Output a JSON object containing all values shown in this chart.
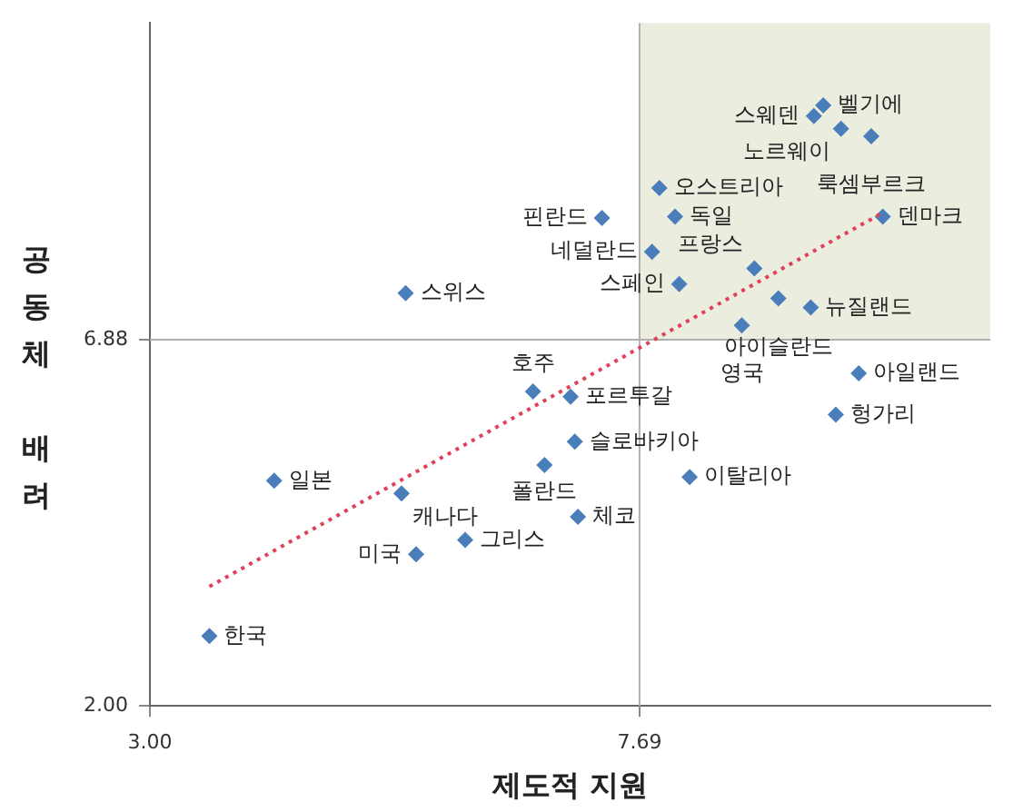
{
  "chart_data": {
    "type": "scatter",
    "xlabel": "제도적 지원",
    "ylabel": "공동체 배려",
    "xlim": [
      3,
      11.05
    ],
    "ylim": [
      2,
      11.1
    ],
    "xticks": [
      {
        "value": 3,
        "label": "3.00"
      },
      {
        "value": 7.69,
        "label": "7.69"
      }
    ],
    "yticks": [
      {
        "value": 2,
        "label": "2.00"
      },
      {
        "value": 6.88,
        "label": "6.88"
      }
    ],
    "grid": false,
    "legend": false,
    "marker": "diamond",
    "ref_lines": [
      {
        "axis": "x",
        "value": 7.69,
        "color": "#b0b0b0"
      },
      {
        "axis": "y",
        "value": 6.88,
        "color": "#b0b0b0"
      }
    ],
    "bands": [
      {
        "axis": "x",
        "from": 7.69,
        "to": 11.05,
        "color": "#ebeedf"
      }
    ],
    "series": [
      {
        "type": "scatter",
        "color": "#4a7ebb",
        "x": [
          7.33,
          5.45,
          9.45,
          9.36,
          9.62,
          9.91,
          7.88,
          8.03,
          7.81,
          8.79,
          8.07,
          9.02,
          9.33,
          8.67,
          10.02,
          9.79,
          6.67,
          7.03,
          7.07,
          6.78,
          4.19,
          5.41,
          7.1,
          6.02,
          5.55,
          3.57,
          8.17,
          9.57
        ],
        "values": [
          8.5,
          7.5,
          10.0,
          9.86,
          9.69,
          9.59,
          8.9,
          8.52,
          8.05,
          7.83,
          7.62,
          7.43,
          7.31,
          7.07,
          8.52,
          6.43,
          6.19,
          6.12,
          5.52,
          5.21,
          5.0,
          4.83,
          4.52,
          4.21,
          4.02,
          2.93,
          5.05,
          5.88
        ]
      },
      {
        "type": "line",
        "color": "#e0405a",
        "line_style": "dotted",
        "marker": "none",
        "x": [
          3.57,
          10.02
        ],
        "values": [
          3.59,
          8.57
        ]
      }
    ],
    "annotations": [
      {
        "text": "핀란드",
        "x": 7.33,
        "y": 8.5
      },
      {
        "text": "스위스",
        "x": 5.45,
        "y": 7.5
      },
      {
        "text": "벨기에",
        "x": 9.45,
        "y": 10.0
      },
      {
        "text": "스웨덴",
        "x": 9.36,
        "y": 9.86
      },
      {
        "text": "노르웨이",
        "x": 9.62,
        "y": 9.69
      },
      {
        "text": "룩셈부르크",
        "x": 9.91,
        "y": 9.59
      },
      {
        "text": "오스트리아",
        "x": 7.88,
        "y": 8.9
      },
      {
        "text": "독일",
        "x": 8.03,
        "y": 8.52
      },
      {
        "text": "네덜란드",
        "x": 7.81,
        "y": 8.05
      },
      {
        "text": "프랑스",
        "x": 8.79,
        "y": 7.83
      },
      {
        "text": "스페인",
        "x": 8.07,
        "y": 7.62
      },
      {
        "text": "아이슬란드",
        "x": 9.02,
        "y": 7.43
      },
      {
        "text": "뉴질랜드",
        "x": 9.33,
        "y": 7.31
      },
      {
        "text": "영국",
        "x": 8.67,
        "y": 7.07
      },
      {
        "text": "덴마크",
        "x": 10.02,
        "y": 8.52
      },
      {
        "text": "아일랜드",
        "x": 9.79,
        "y": 6.43
      },
      {
        "text": "호주",
        "x": 6.67,
        "y": 6.19
      },
      {
        "text": "포르투갈",
        "x": 7.03,
        "y": 6.12
      },
      {
        "text": "슬로바키아",
        "x": 7.07,
        "y": 5.52
      },
      {
        "text": "폴란드",
        "x": 6.78,
        "y": 5.21
      },
      {
        "text": "일본",
        "x": 4.19,
        "y": 5.0
      },
      {
        "text": "캐나다",
        "x": 5.41,
        "y": 4.83
      },
      {
        "text": "체코",
        "x": 7.1,
        "y": 4.52
      },
      {
        "text": "그리스",
        "x": 6.02,
        "y": 4.21
      },
      {
        "text": "미국",
        "x": 5.55,
        "y": 4.02
      },
      {
        "text": "한국",
        "x": 3.57,
        "y": 2.93
      },
      {
        "text": "이탈리아",
        "x": 8.17,
        "y": 5.05
      },
      {
        "text": "헝가리",
        "x": 9.57,
        "y": 5.88
      }
    ]
  }
}
